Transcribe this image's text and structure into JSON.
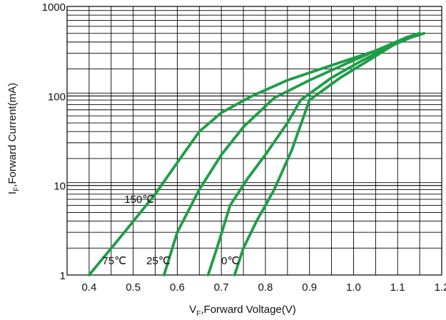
{
  "chart_data": {
    "type": "line",
    "title": "",
    "xlabel": "",
    "ylabel": "",
    "xlabel_parts": {
      "symbol": "V",
      "sub": "F",
      "text": ",Forward Voltage(V)"
    },
    "ylabel_parts": {
      "symbol": "I",
      "sub": "F",
      "text": ",Forward Current(mA)"
    },
    "xlim": [
      0.35,
      1.2
    ],
    "ylim": [
      1,
      1000
    ],
    "yscale": "log",
    "grid": true,
    "x_ticks": [
      "0.4",
      "0.5",
      "0.6",
      "0.7",
      "0.8",
      "0.9",
      "1.0",
      "1.1",
      "1.2"
    ],
    "y_ticks": [
      "1",
      "10",
      "100",
      "1000"
    ],
    "series": [
      {
        "name": "150℃",
        "x": [
          0.4,
          0.48,
          0.55,
          0.6,
          0.65,
          0.7,
          0.77,
          0.85,
          0.95,
          1.05,
          1.12,
          1.15
        ],
        "y": [
          1,
          3,
          8,
          18,
          40,
          65,
          100,
          150,
          220,
          320,
          450,
          500
        ]
      },
      {
        "name": "75℃",
        "x": [
          0.57,
          0.6,
          0.65,
          0.7,
          0.75,
          0.82,
          0.9,
          1.0,
          1.08,
          1.12,
          1.15
        ],
        "y": [
          1,
          3,
          9,
          22,
          45,
          95,
          150,
          250,
          370,
          450,
          500
        ]
      },
      {
        "name": "25℃",
        "x": [
          0.67,
          0.69,
          0.72,
          0.76,
          0.8,
          0.85,
          0.88,
          0.95,
          1.02,
          1.08,
          1.12,
          1.15
        ],
        "y": [
          1,
          2,
          6,
          12,
          22,
          50,
          90,
          160,
          250,
          350,
          450,
          500
        ]
      },
      {
        "name": "0℃",
        "x": [
          0.73,
          0.75,
          0.78,
          0.82,
          0.86,
          0.9,
          0.97,
          1.04,
          1.09,
          1.13,
          1.16
        ],
        "y": [
          1,
          2,
          4,
          9,
          25,
          90,
          160,
          260,
          370,
          450,
          500
        ]
      }
    ],
    "annotations": [
      "150℃",
      "75℃",
      "25℃",
      "0℃"
    ]
  }
}
